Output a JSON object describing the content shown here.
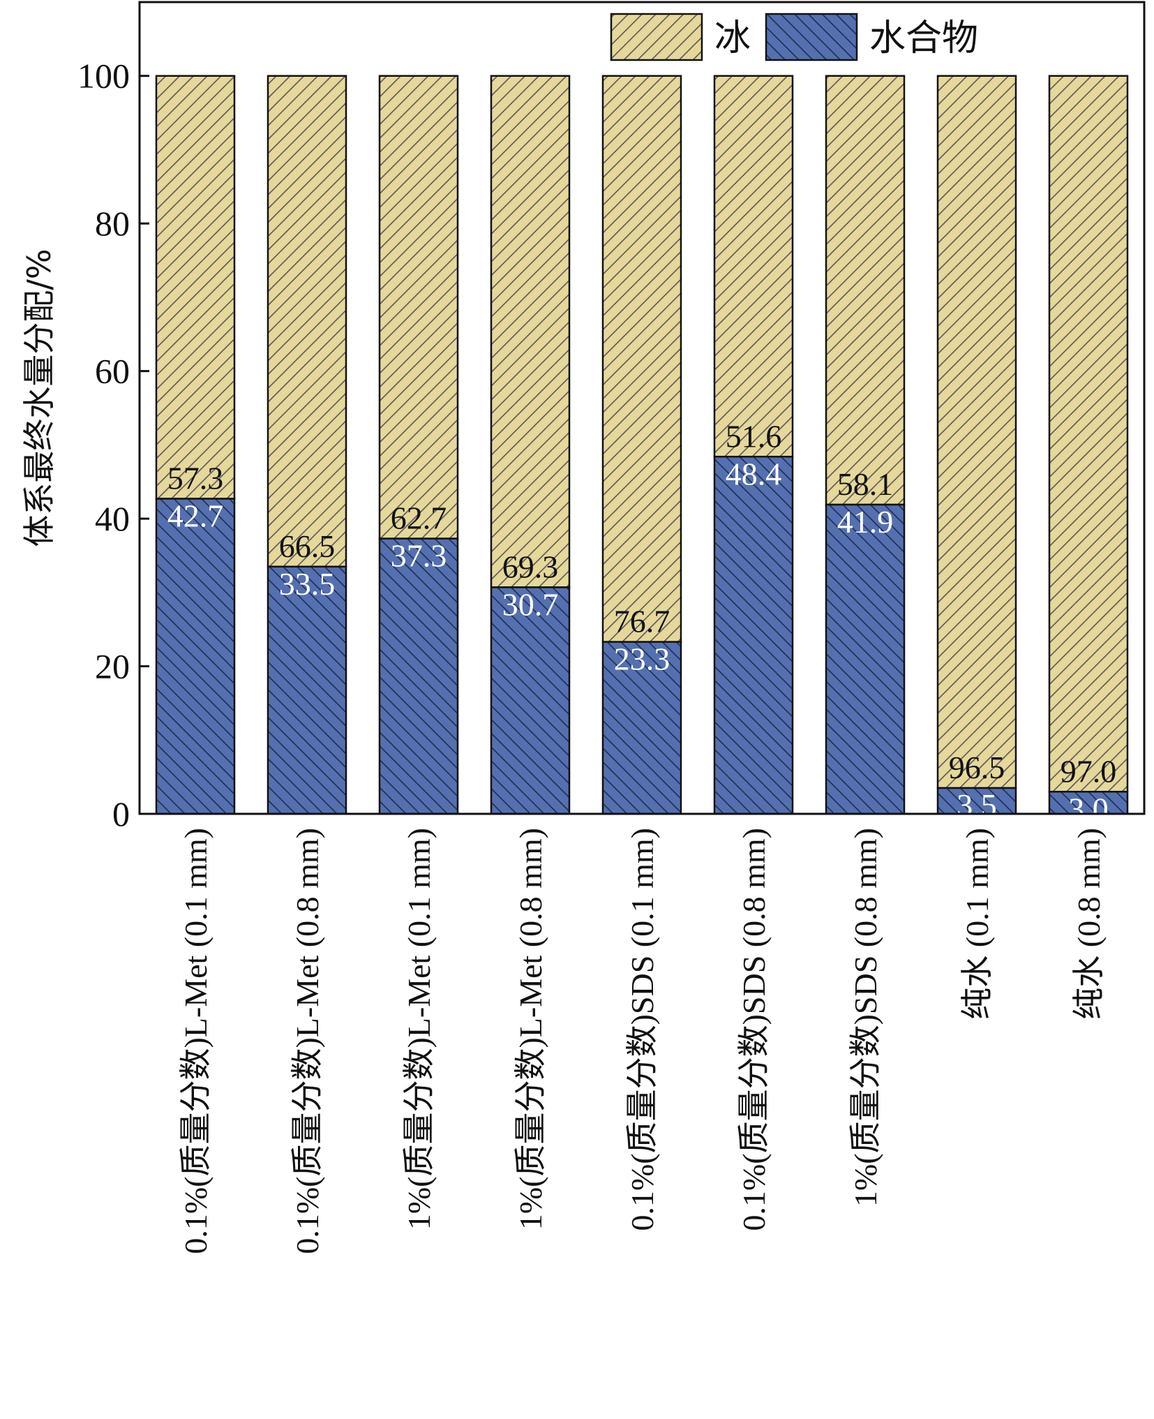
{
  "chart_data": {
    "type": "bar",
    "stacked": true,
    "ylabel": "体系最终水量分配/%",
    "ylim": [
      0,
      110
    ],
    "yticks": [
      0,
      20,
      40,
      60,
      80,
      100
    ],
    "grid": false,
    "legend_position": "top-right",
    "categories": [
      "0.1%(质量分数)L-Met (0.1 mm)",
      "0.1%(质量分数)L-Met (0.8 mm)",
      "1%(质量分数)L-Met (0.1 mm)",
      "1%(质量分数)L-Met (0.8 mm)",
      "0.1%(质量分数)SDS (0.1 mm)",
      "0.1%(质量分数)SDS (0.8 mm)",
      "1%(质量分数)SDS (0.8 mm)",
      "纯水 (0.1 mm)",
      "纯水 (0.8 mm)"
    ],
    "series": [
      {
        "name": "水合物",
        "color": "#5470b0",
        "values": [
          42.7,
          33.5,
          37.3,
          30.7,
          23.3,
          48.4,
          41.9,
          3.5,
          3.0
        ],
        "labels": [
          "42.7",
          "33.5",
          "37.3",
          "30.7",
          "23.3",
          "48.4",
          "41.9",
          "3.5",
          "3.0"
        ]
      },
      {
        "name": "冰",
        "color": "#e6d89a",
        "values": [
          57.3,
          66.5,
          62.7,
          69.3,
          76.7,
          51.6,
          58.1,
          96.5,
          97.0
        ],
        "labels": [
          "57.3",
          "66.5",
          "62.7",
          "69.3",
          "76.7",
          "51.6",
          "58.1",
          "96.5",
          "97.0"
        ]
      }
    ],
    "legend": [
      {
        "name": "冰",
        "color": "#e6d89a"
      },
      {
        "name": "水合物",
        "color": "#5470b0"
      }
    ]
  }
}
